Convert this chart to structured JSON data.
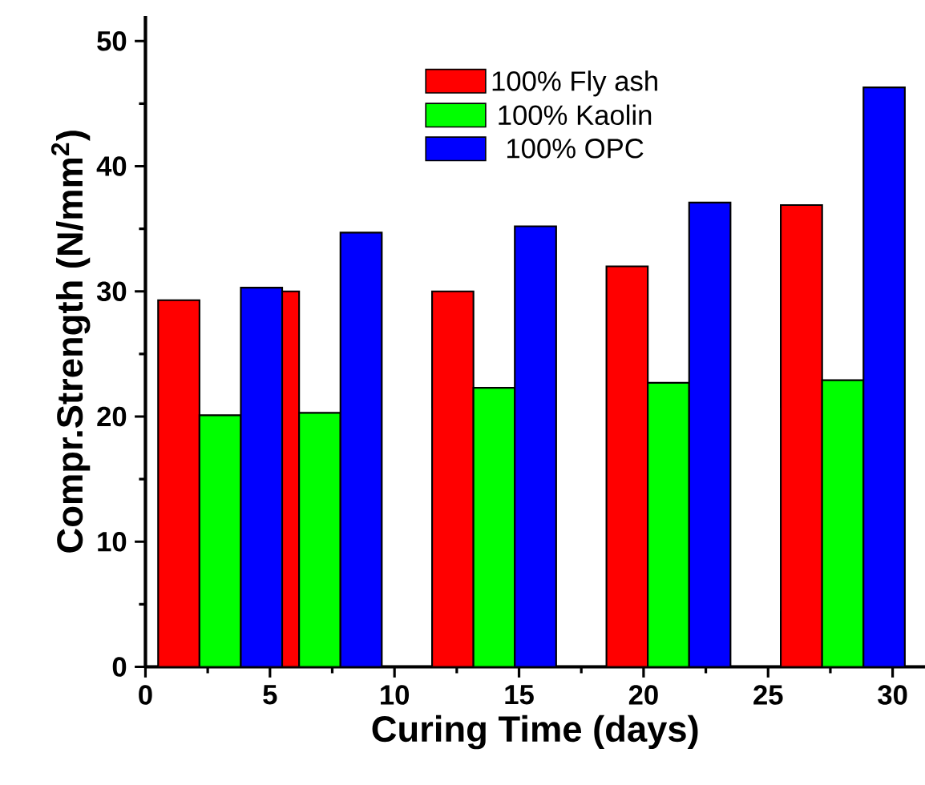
{
  "chart_data": {
    "type": "bar",
    "xlabel": "Curing Time (days)",
    "ylabel": "Compr.Strength (N/mm$^{2}$)",
    "x": [
      3,
      7,
      14,
      21,
      28
    ],
    "series": [
      {
        "name": "100% Fly ash",
        "color": "#ff0000",
        "values": [
          29.3,
          30.0,
          30.0,
          32.0,
          36.9
        ]
      },
      {
        "name": "100% Kaolin",
        "color": "#00ff00",
        "values": [
          20.1,
          20.3,
          22.3,
          22.7,
          22.9
        ]
      },
      {
        "name": "100% OPC",
        "color": "#0000ff",
        "values": [
          30.3,
          34.7,
          35.2,
          37.1,
          46.3
        ]
      }
    ],
    "xlim": [
      0,
      31.3
    ],
    "ylim": [
      0,
      52
    ],
    "xticks": [
      0,
      5,
      10,
      15,
      20,
      25,
      30
    ],
    "yticks": [
      0,
      10,
      20,
      30,
      40,
      50
    ],
    "legend": "top",
    "grid": false
  }
}
